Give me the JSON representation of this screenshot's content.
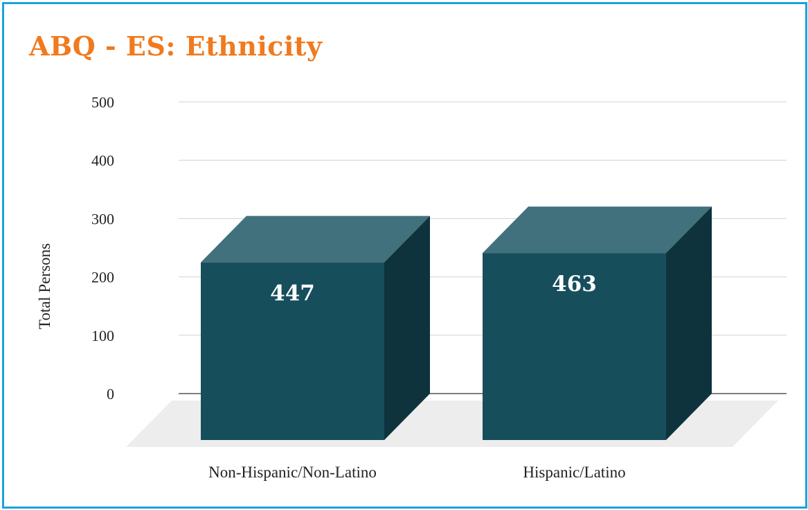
{
  "title": "ABQ - ES: Ethnicity",
  "colors": {
    "border": "#1aa3dc",
    "title": "#f07a1e",
    "bar_front": "#164e5c",
    "bar_top": "#41717c",
    "bar_side": "#0e333d",
    "floor": "#ededed",
    "grid": "#d0d0d0"
  },
  "chart_data": {
    "type": "bar",
    "title": "ABQ - ES: Ethnicity",
    "categories": [
      "Non-Hispanic/Non-Latino",
      "Hispanic/Latino"
    ],
    "values": [
      447,
      463
    ],
    "data_labels": [
      "447",
      "463"
    ],
    "xlabel": "",
    "ylabel": "Total Persons",
    "ylim": [
      0,
      500
    ],
    "yticks": [
      "0",
      "100",
      "200",
      "300",
      "400",
      "500"
    ],
    "grid": true,
    "legend": "none",
    "style": "3d-column"
  }
}
